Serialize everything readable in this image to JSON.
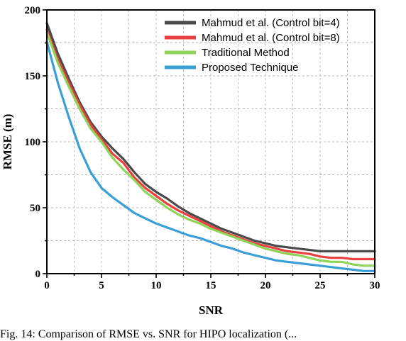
{
  "chart_data": {
    "type": "line",
    "title": "",
    "xlabel": "SNR",
    "ylabel": "RMSE (m)",
    "xlim": [
      0,
      30
    ],
    "ylim": [
      0,
      200
    ],
    "xticks": [
      0,
      5,
      10,
      15,
      20,
      25,
      30
    ],
    "yticks": [
      0,
      50,
      100,
      150,
      200
    ],
    "grid": true,
    "legend_position": "top-right",
    "x": [
      0,
      1,
      2,
      3,
      4,
      5,
      6,
      7,
      8,
      9,
      10,
      11,
      12,
      13,
      14,
      15,
      16,
      17,
      18,
      19,
      20,
      21,
      22,
      23,
      24,
      25,
      26,
      27,
      28,
      29,
      30
    ],
    "series": [
      {
        "name": "Mahmud et al. (Control bit=4)",
        "color": "#4a4a4a",
        "values": [
          190,
          167,
          148,
          130,
          115,
          104,
          95,
          87,
          77,
          68,
          62,
          57,
          51,
          46,
          42,
          38,
          34,
          31,
          28,
          25,
          23,
          21,
          20,
          19,
          18,
          17,
          17,
          17,
          17,
          17,
          17
        ]
      },
      {
        "name": "Mahmud et al. (Control bit=8)",
        "color": "#e8403f",
        "values": [
          185,
          163,
          145,
          128,
          113,
          102,
          91,
          84,
          73,
          65,
          59,
          53,
          48,
          44,
          40,
          36,
          32,
          29,
          26,
          23,
          21,
          19,
          17,
          16,
          15,
          13,
          12,
          12,
          11,
          11,
          11
        ]
      },
      {
        "name": "Traditional Method",
        "color": "#8fd35a",
        "values": [
          183,
          160,
          142,
          125,
          110,
          100,
          88,
          79,
          71,
          62,
          56,
          50,
          45,
          41,
          38,
          34,
          31,
          28,
          25,
          22,
          19,
          17,
          15,
          14,
          12,
          10,
          9,
          9,
          7,
          6,
          6
        ]
      },
      {
        "name": "Proposed Technique",
        "color": "#3a9fd6",
        "values": [
          176,
          145,
          119,
          95,
          77,
          65,
          58,
          52,
          46,
          42,
          38,
          35,
          32,
          29,
          27,
          24,
          21,
          19,
          16,
          14,
          12,
          10,
          9,
          8,
          7,
          6,
          5,
          4,
          3,
          2,
          2
        ]
      }
    ]
  },
  "caption": "Fig. 14: Comparison of RMSE vs. SNR for HIPO localization (..."
}
